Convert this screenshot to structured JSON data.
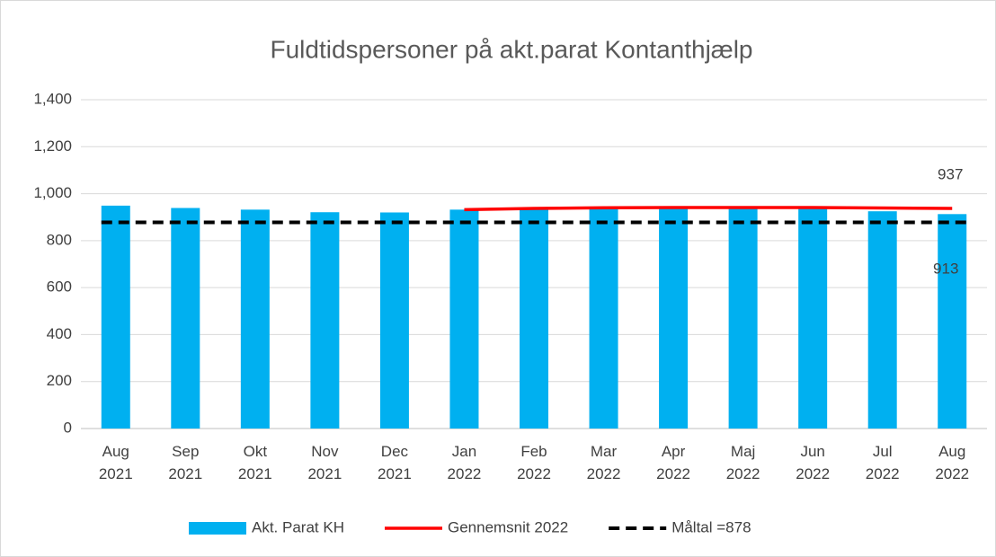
{
  "chart_data": {
    "type": "bar",
    "title": "Fuldtidspersoner på akt.parat Kontanthjælp",
    "categories": [
      "Aug 2021",
      "Sep 2021",
      "Okt 2021",
      "Nov 2021",
      "Dec 2021",
      "Jan 2022",
      "Feb 2022",
      "Mar 2022",
      "Apr 2022",
      "Maj 2022",
      "Jun 2022",
      "Jul 2022",
      "Aug 2022"
    ],
    "series": [
      {
        "name": "Akt. Parat KH",
        "type": "bar",
        "color": "#00b0f0",
        "values": [
          949,
          939,
          932,
          921,
          920,
          932,
          935,
          940,
          940,
          940,
          938,
          925,
          913
        ]
      },
      {
        "name": "Gennemsnit 2022",
        "type": "line",
        "color": "#ff0000",
        "values": [
          null,
          null,
          null,
          null,
          null,
          932,
          937,
          940,
          941,
          941,
          941,
          939,
          937
        ]
      },
      {
        "name": "Måltal =878",
        "type": "line",
        "color": "#000000",
        "dash": true,
        "values": [
          878,
          878,
          878,
          878,
          878,
          878,
          878,
          878,
          878,
          878,
          878,
          878,
          878
        ]
      }
    ],
    "ylim": [
      0,
      1400
    ],
    "yticks": [
      0,
      200,
      400,
      600,
      800,
      {
        "value": 1000,
        "label": "1,000"
      },
      {
        "value": 1200,
        "label": "1,200"
      },
      {
        "value": 1400,
        "label": "1,400"
      }
    ],
    "grid": true,
    "legend": "bottom"
  }
}
